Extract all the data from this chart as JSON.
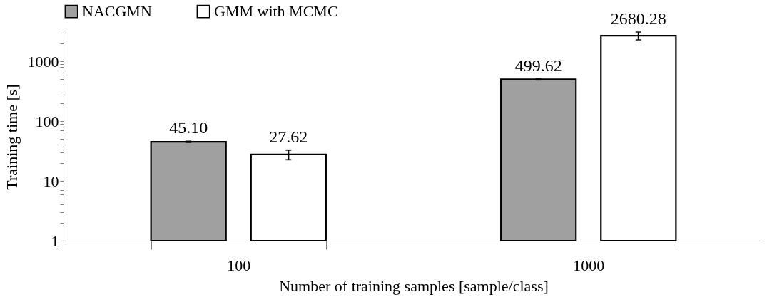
{
  "chart_data": {
    "type": "bar",
    "xlabel": "Number of training samples [sample/class]",
    "ylabel": "Training time [s]",
    "categories": [
      "100",
      "1000"
    ],
    "series": [
      {
        "name": "NACGMN",
        "color": "#a0a0a0",
        "values": [
          45.1,
          499.62
        ],
        "value_labels": [
          "45.10",
          "499.62"
        ],
        "errors": [
          1,
          10
        ]
      },
      {
        "name": "GMM with MCMC",
        "color": "#ffffff",
        "values": [
          27.62,
          2680.28
        ],
        "value_labels": [
          "27.62",
          "2680.28"
        ],
        "errors": [
          5,
          400
        ]
      }
    ],
    "log": true,
    "ylim": [
      1,
      3000
    ],
    "yticks": [
      1,
      {
        "value": 2,
        "label": null
      },
      {
        "value": 3,
        "label": null
      },
      {
        "value": 4,
        "label": null
      },
      {
        "value": 5,
        "label": null
      },
      {
        "value": 6,
        "label": null
      },
      {
        "value": 7,
        "label": null
      },
      {
        "value": 8,
        "label": null
      },
      {
        "value": 9,
        "label": null
      },
      10,
      {
        "value": 20,
        "label": null
      },
      {
        "value": 30,
        "label": null
      },
      {
        "value": 40,
        "label": null
      },
      {
        "value": 50,
        "label": null
      },
      {
        "value": 60,
        "label": null
      },
      {
        "value": 70,
        "label": null
      },
      {
        "value": 80,
        "label": null
      },
      {
        "value": 90,
        "label": null
      },
      100,
      {
        "value": 200,
        "label": null
      },
      {
        "value": 300,
        "label": null
      },
      {
        "value": 400,
        "label": null
      },
      {
        "value": 500,
        "label": null
      },
      {
        "value": 600,
        "label": null
      },
      {
        "value": 700,
        "label": null
      },
      {
        "value": 800,
        "label": null
      },
      {
        "value": 900,
        "label": null
      },
      1000,
      {
        "value": 2000,
        "label": null
      },
      {
        "value": 3000,
        "label": null
      }
    ],
    "grid": false,
    "legend": "top"
  }
}
